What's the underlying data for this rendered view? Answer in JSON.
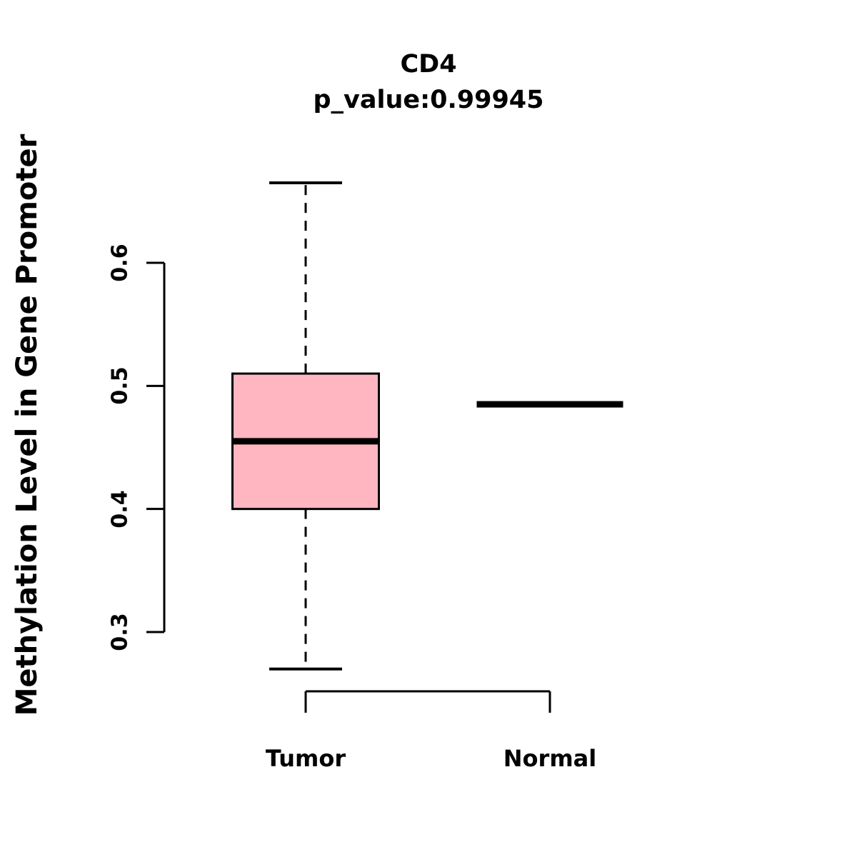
{
  "chart_data": {
    "type": "boxplot",
    "title": "CD4",
    "subtitle": "p_value:0.99945",
    "ylabel": "Methylation Level in Gene Promoter",
    "xlabel": "",
    "yticks": [
      0.3,
      0.4,
      0.5,
      0.6
    ],
    "ylim": [
      0.25,
      0.68
    ],
    "grid": "off",
    "legend": "none",
    "colors": {
      "box_fill": "#FFB6C1",
      "line": "#000000",
      "background": "#FFFFFF"
    },
    "groups": [
      {
        "label": "Tumor",
        "stats": {
          "min": 0.27,
          "q1": 0.4,
          "median": 0.455,
          "q3": 0.51,
          "max": 0.665
        }
      },
      {
        "label": "Normal",
        "stats": {
          "min": 0.485,
          "q1": 0.485,
          "median": 0.485,
          "q3": 0.485,
          "max": 0.485
        }
      }
    ]
  }
}
